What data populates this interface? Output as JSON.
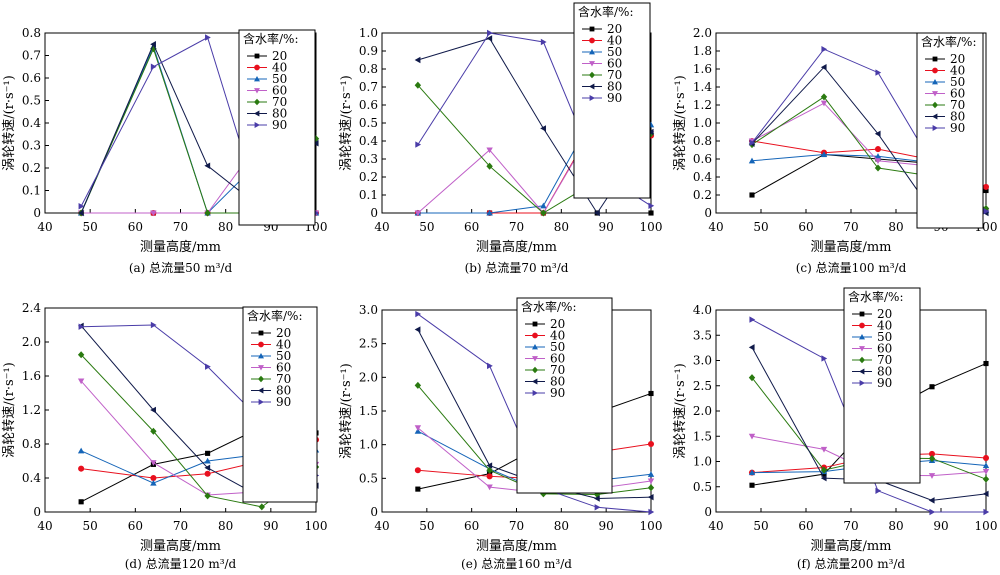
{
  "series_colors": [
    "#000000",
    "#e8101e",
    "#1565b8",
    "#c060c8",
    "#2a7a10",
    "#101a4a",
    "#4a3ca8"
  ],
  "series_markers": [
    "square",
    "circle",
    "triangle-up",
    "triangle-down",
    "diamond",
    "triangle-left",
    "triangle-right"
  ],
  "chart_data": [
    {
      "type": "line",
      "caption": "(a) 总流量50 m³/d",
      "xlabel": "测量高度/mm",
      "ylabel": "涡轮转速/(r·s⁻¹)",
      "xlim": [
        40,
        100
      ],
      "xticks": [
        40,
        50,
        60,
        70,
        80,
        90,
        100
      ],
      "ylim": [
        0,
        0.8
      ],
      "yticks": [
        "0",
        "0.1",
        "0.2",
        "0.3",
        "0.4",
        "0.5",
        "0.6",
        "0.7",
        "0.8"
      ],
      "legend_title": "含水率/%:",
      "legend_position": "top-right",
      "x": [
        48,
        64,
        76,
        88,
        100
      ],
      "series": [
        {
          "name": "20",
          "values": [
            0,
            0,
            0,
            0,
            0
          ]
        },
        {
          "name": "40",
          "values": [
            0,
            0,
            0,
            0,
            0
          ]
        },
        {
          "name": "50",
          "values": [
            0,
            0.74,
            0,
            0.24,
            0
          ]
        },
        {
          "name": "60",
          "values": [
            0,
            0,
            0,
            0.33,
            0
          ]
        },
        {
          "name": "70",
          "values": [
            0,
            0.73,
            0,
            0,
            0.33
          ]
        },
        {
          "name": "80",
          "values": [
            0,
            0.75,
            0.21,
            0.02,
            0.31
          ]
        },
        {
          "name": "90",
          "values": [
            0.03,
            0.65,
            0.78,
            0,
            0
          ]
        }
      ]
    },
    {
      "type": "line",
      "caption": "(b) 总流量70 m³/d",
      "xlabel": "测量高度/mm",
      "ylabel": "涡轮转速/(r·s⁻¹)",
      "xlim": [
        40,
        100
      ],
      "xticks": [
        40,
        50,
        60,
        70,
        80,
        90,
        100
      ],
      "ylim": [
        0,
        1.0
      ],
      "yticks": [
        "0",
        "0.1",
        "0.2",
        "0.3",
        "0.4",
        "0.5",
        "0.6",
        "0.7",
        "0.8",
        "0.9",
        "1.0"
      ],
      "legend_title": "含水率/%:",
      "legend_position": "top-right",
      "x": [
        48,
        64,
        76,
        88,
        100
      ],
      "series": [
        {
          "name": "20",
          "values": [
            0,
            0,
            0,
            0,
            0
          ]
        },
        {
          "name": "40",
          "values": [
            0,
            0,
            0,
            0.52,
            0.43
          ]
        },
        {
          "name": "50",
          "values": [
            0,
            0,
            0.04,
            0.58,
            0.49
          ]
        },
        {
          "name": "60",
          "values": [
            0,
            0.35,
            0,
            0.51,
            0.44
          ]
        },
        {
          "name": "70",
          "values": [
            0.71,
            0.26,
            0,
            0.18,
            0.44
          ]
        },
        {
          "name": "80",
          "values": [
            0.85,
            0.97,
            0.47,
            0,
            0.45
          ]
        },
        {
          "name": "90",
          "values": [
            0.38,
            1.0,
            0.95,
            0.23,
            0.04
          ]
        }
      ]
    },
    {
      "type": "line",
      "caption": "(c) 总流量100 m³/d",
      "xlabel": "测量高度/mm",
      "ylabel": "涡轮转速/(r·s⁻¹)",
      "xlim": [
        40,
        100
      ],
      "xticks": [
        40,
        50,
        60,
        70,
        80,
        90,
        100
      ],
      "ylim": [
        0,
        2.0
      ],
      "yticks": [
        "0",
        "0.2",
        "0.4",
        "0.6",
        "0.8",
        "1.0",
        "1.2",
        "1.4",
        "1.6",
        "1.8",
        "2.0"
      ],
      "legend_title": "含水率/%:",
      "legend_position": "top-right",
      "x": [
        48,
        64,
        76,
        88,
        100
      ],
      "series": [
        {
          "name": "20",
          "values": [
            0.2,
            0.65,
            0.6,
            0.55,
            0.25
          ]
        },
        {
          "name": "40",
          "values": [
            0.8,
            0.67,
            0.71,
            0.59,
            0.29
          ]
        },
        {
          "name": "50",
          "values": [
            0.58,
            0.65,
            0.63,
            0.56,
            0.03
          ]
        },
        {
          "name": "60",
          "values": [
            0.8,
            1.22,
            0.58,
            0.52,
            0.02
          ]
        },
        {
          "name": "70",
          "values": [
            0.76,
            1.29,
            0.5,
            0.41,
            0.05
          ]
        },
        {
          "name": "80",
          "values": [
            0.77,
            1.62,
            0.88,
            0.02,
            0
          ]
        },
        {
          "name": "90",
          "values": [
            0.78,
            1.82,
            1.56,
            0.55,
            0.02
          ]
        }
      ]
    },
    {
      "type": "line",
      "caption": "(d) 总流量120 m³/d",
      "xlabel": "测量高度/mm",
      "ylabel": "涡轮转速/(r·s⁻¹)",
      "xlim": [
        40,
        100
      ],
      "xticks": [
        40,
        50,
        60,
        70,
        80,
        90,
        100
      ],
      "ylim": [
        0,
        2.4
      ],
      "yticks": [
        "0",
        "0.4",
        "0.8",
        "1.2",
        "1.6",
        "2.0",
        "2.4"
      ],
      "legend_title": "含水率/%:",
      "legend_position": "top-right",
      "x": [
        48,
        64,
        76,
        88,
        100
      ],
      "series": [
        {
          "name": "20",
          "values": [
            0.12,
            0.56,
            0.69,
            1.0,
            0.93
          ]
        },
        {
          "name": "40",
          "values": [
            0.51,
            0.4,
            0.45,
            0.6,
            0.85
          ]
        },
        {
          "name": "50",
          "values": [
            0.72,
            0.34,
            0.6,
            0.68,
            0.73
          ]
        },
        {
          "name": "60",
          "values": [
            1.54,
            0.58,
            0.2,
            0.24,
            0.56
          ]
        },
        {
          "name": "70",
          "values": [
            1.85,
            0.95,
            0.19,
            0.06,
            0.53
          ]
        },
        {
          "name": "80",
          "values": [
            2.19,
            1.2,
            0.52,
            0.17,
            0.31
          ]
        },
        {
          "name": "90",
          "values": [
            2.18,
            2.2,
            1.71,
            1.07,
            0.43
          ]
        }
      ]
    },
    {
      "type": "line",
      "caption": "(e) 总流量160 m³/d",
      "xlabel": "测量高度/mm",
      "ylabel": "涡轮转速/(r·s⁻¹)",
      "xlim": [
        40,
        100
      ],
      "xticks": [
        40,
        50,
        60,
        70,
        80,
        90,
        100
      ],
      "ylim": [
        0,
        3.0
      ],
      "yticks": [
        "0",
        "0.5",
        "1.0",
        "1.5",
        "2.0",
        "2.5",
        "3.0"
      ],
      "legend_title": "含水率/%:",
      "legend_position": "top-right",
      "x": [
        48,
        64,
        76,
        88,
        100
      ],
      "series": [
        {
          "name": "20",
          "values": [
            0.34,
            0.57,
            1.0,
            1.48,
            1.76
          ]
        },
        {
          "name": "40",
          "values": [
            0.62,
            0.53,
            0.49,
            0.89,
            1.01
          ]
        },
        {
          "name": "50",
          "values": [
            1.2,
            0.64,
            0.3,
            0.47,
            0.56
          ]
        },
        {
          "name": "60",
          "values": [
            1.25,
            0.37,
            0.28,
            0.35,
            0.46
          ]
        },
        {
          "name": "70",
          "values": [
            1.88,
            0.62,
            0.27,
            0.26,
            0.36
          ]
        },
        {
          "name": "80",
          "values": [
            2.71,
            0.69,
            0.4,
            0.2,
            0.22
          ]
        },
        {
          "name": "90",
          "values": [
            2.94,
            2.17,
            0.35,
            0.07,
            0
          ]
        }
      ]
    },
    {
      "type": "line",
      "caption": "(f) 总流量200 m³/d",
      "xlabel": "测量高度/mm",
      "ylabel": "涡轮转速/(r·s⁻¹)",
      "xlim": [
        40,
        100
      ],
      "xticks": [
        40,
        50,
        60,
        70,
        80,
        90,
        100
      ],
      "ylim": [
        0,
        4.0
      ],
      "yticks": [
        "0",
        "0.5",
        "1.0",
        "1.5",
        "2.0",
        "2.5",
        "3.0",
        "3.5",
        "4.0"
      ],
      "legend_title": "含水率/%:",
      "legend_position": "top-right",
      "x": [
        48,
        64,
        76,
        88,
        100
      ],
      "series": [
        {
          "name": "20",
          "values": [
            0.53,
            0.75,
            1.9,
            2.48,
            2.94
          ]
        },
        {
          "name": "40",
          "values": [
            0.78,
            0.88,
            1.12,
            1.15,
            1.07
          ]
        },
        {
          "name": "50",
          "values": [
            0.78,
            0.8,
            0.94,
            1.02,
            0.92
          ]
        },
        {
          "name": "60",
          "values": [
            1.5,
            1.24,
            0.73,
            0.72,
            0.8
          ]
        },
        {
          "name": "70",
          "values": [
            2.66,
            0.83,
            1.07,
            1.06,
            0.65
          ]
        },
        {
          "name": "80",
          "values": [
            3.26,
            0.67,
            0.63,
            0.23,
            0.36
          ]
        },
        {
          "name": "90",
          "values": [
            3.81,
            3.04,
            0.42,
            0,
            0
          ]
        }
      ]
    }
  ]
}
